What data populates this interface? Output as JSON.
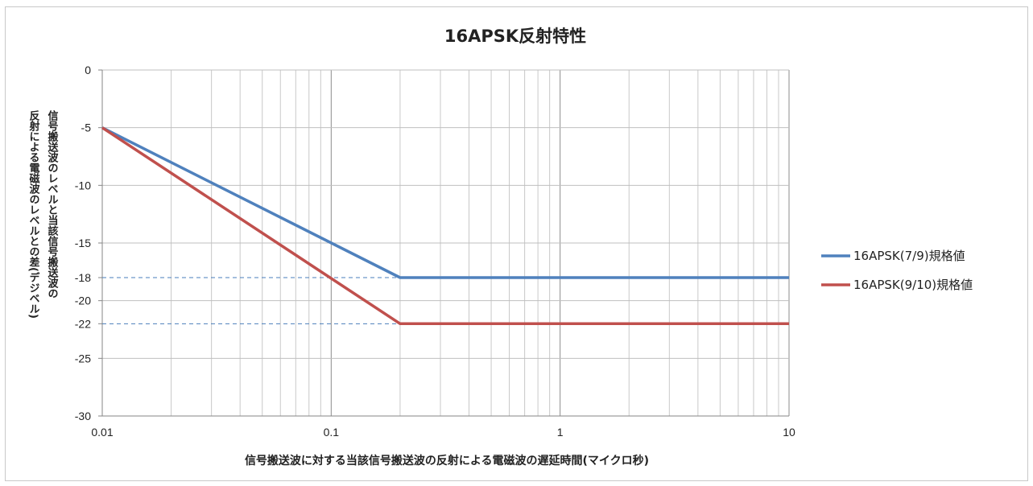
{
  "chart_data": {
    "type": "line",
    "title": "16APSK反射特性",
    "xlabel": "信号搬送波に対する当該信号搬送波の反射による電磁波の遅延時間(マイクロ秒)",
    "ylabel_lines": [
      "信号搬送波のレベルと当該信号搬送波の",
      "反射による電磁波のレベルとの差(デジベル)"
    ],
    "x_scale": "log",
    "xlim": [
      0.01,
      10
    ],
    "ylim": [
      -30,
      0
    ],
    "x_ticks": [
      0.01,
      0.1,
      1,
      10
    ],
    "x_tick_labels": [
      "0.01",
      "0.1",
      "1",
      "10"
    ],
    "y_ticks": [
      0,
      -5,
      -10,
      -15,
      -18,
      -20,
      -22,
      -25,
      -30
    ],
    "y_tick_labels": [
      "0",
      "-5",
      "-10",
      "-15",
      "-18",
      "-20",
      "-22",
      "-25",
      "-30"
    ],
    "grid": true,
    "legend_position": "right",
    "reference_lines": [
      {
        "y": -18,
        "color": "#4a7ebb",
        "style": "dashed"
      },
      {
        "y": -22,
        "color": "#4a7ebb",
        "style": "dashed"
      }
    ],
    "series": [
      {
        "name": "16APSK(7/9)規格値",
        "color": "#4f81bd",
        "points": [
          [
            0.01,
            -5
          ],
          [
            0.2,
            -18
          ],
          [
            10,
            -18
          ]
        ]
      },
      {
        "name": "16APSK(9/10)規格値",
        "color": "#c0504d",
        "points": [
          [
            0.01,
            -5
          ],
          [
            0.2,
            -22
          ],
          [
            10,
            -22
          ]
        ]
      }
    ]
  }
}
